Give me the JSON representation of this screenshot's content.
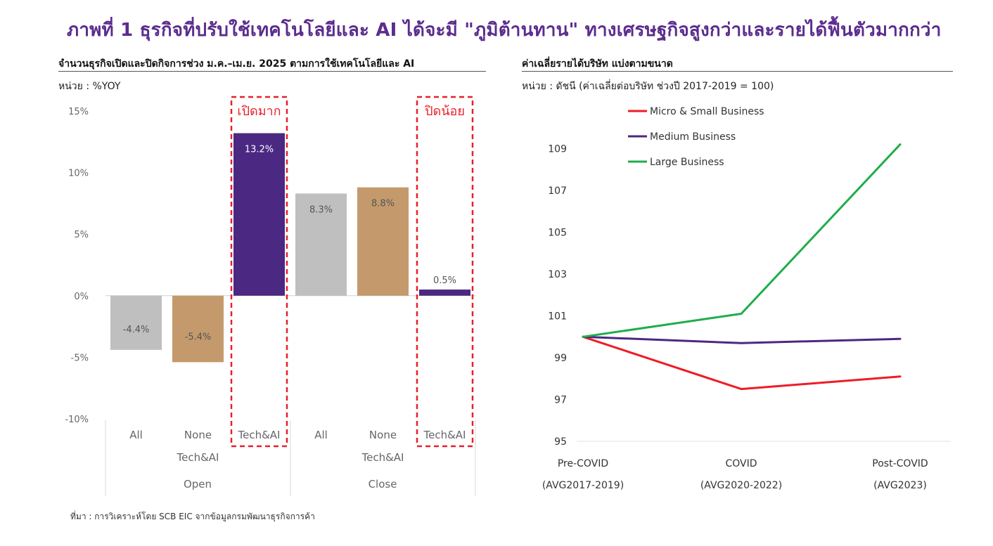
{
  "title": "ภาพที่ 1 ธุรกิจที่ปรับใช้เทคโนโลยีและ AI ได้จะมี \"ภูมิต้านทาน\" ทางเศรษฐกิจสูงกว่าและรายได้ฟื้นตัวมากกว่า",
  "source": "ที่มา : การวิเคราะห์โดย SCB EIC จากข้อมูลกรมพัฒนาธุรกิจการค้า",
  "colors": {
    "title": "#5b2d8e",
    "gray": "#bfbfbf",
    "tan": "#c49a6c",
    "purple": "#4b2882",
    "highlight": "#e8202a",
    "red": "#ee1c25",
    "green": "#1fad4b"
  },
  "chart_data": [
    {
      "type": "bar",
      "title": "จำนวนธุรกิจเปิดและปิดกิจการช่วง ม.ค.–เม.ย. 2025 ตามการใช้เทคโนโลยีและ AI",
      "unit_label": "หน่วย : %YOY",
      "ylim": [
        -10,
        15
      ],
      "yticks": [
        15,
        10,
        5,
        0,
        -5,
        -10
      ],
      "ytick_labels": [
        "15%",
        "10%",
        "5%",
        "0%",
        "-5%",
        "-10%"
      ],
      "bars": [
        {
          "group": "Open",
          "category": "All",
          "category2": "",
          "value": -4.4,
          "label": "-4.4%",
          "color": "#bfbfbf"
        },
        {
          "group": "Open",
          "category": "None",
          "category2": "Tech&AI",
          "value": -5.4,
          "label": "-5.4%",
          "color": "#c49a6c"
        },
        {
          "group": "Open",
          "category": "Tech&AI",
          "category2": "",
          "value": 13.2,
          "label": "13.2%",
          "color": "#4b2882"
        },
        {
          "group": "Close",
          "category": "All",
          "category2": "",
          "value": 8.3,
          "label": "8.3%",
          "color": "#bfbfbf"
        },
        {
          "group": "Close",
          "category": "None",
          "category2": "Tech&AI",
          "value": 8.8,
          "label": "8.8%",
          "color": "#c49a6c"
        },
        {
          "group": "Close",
          "category": "Tech&AI",
          "category2": "",
          "value": 0.5,
          "label": "0.5%",
          "color": "#4b2882"
        }
      ],
      "groups": [
        "Open",
        "Close"
      ],
      "annotations": [
        {
          "text": "เปิดมาก",
          "bar_index": 2
        },
        {
          "text": "ปิดน้อย",
          "bar_index": 5
        }
      ]
    },
    {
      "type": "line",
      "title": "ค่าเฉลี่ยรายได้บริษัท แบ่งตามขนาด",
      "unit_label": "หน่วย : ดัชนี (ค่าเฉลี่ยต่อบริษัท ช่วงปี 2017-2019 = 100)",
      "ylim": [
        95,
        110
      ],
      "yticks": [
        95,
        97,
        99,
        101,
        103,
        105,
        107,
        109
      ],
      "categories": [
        "Pre-COVID",
        "COVID",
        "Post-COVID"
      ],
      "categories2": [
        "(AVG2017-2019)",
        "(AVG2020-2022)",
        "(AVG2023)"
      ],
      "legend_position": "top-left",
      "series": [
        {
          "name": "Micro & Small Business",
          "values": [
            100,
            97.5,
            98.1
          ],
          "color": "#ee1c25"
        },
        {
          "name": "Medium Business",
          "values": [
            100,
            99.7,
            99.9
          ],
          "color": "#4b2882"
        },
        {
          "name": "Large Business",
          "values": [
            100,
            101.1,
            109.2
          ],
          "color": "#1fad4b"
        }
      ]
    }
  ]
}
